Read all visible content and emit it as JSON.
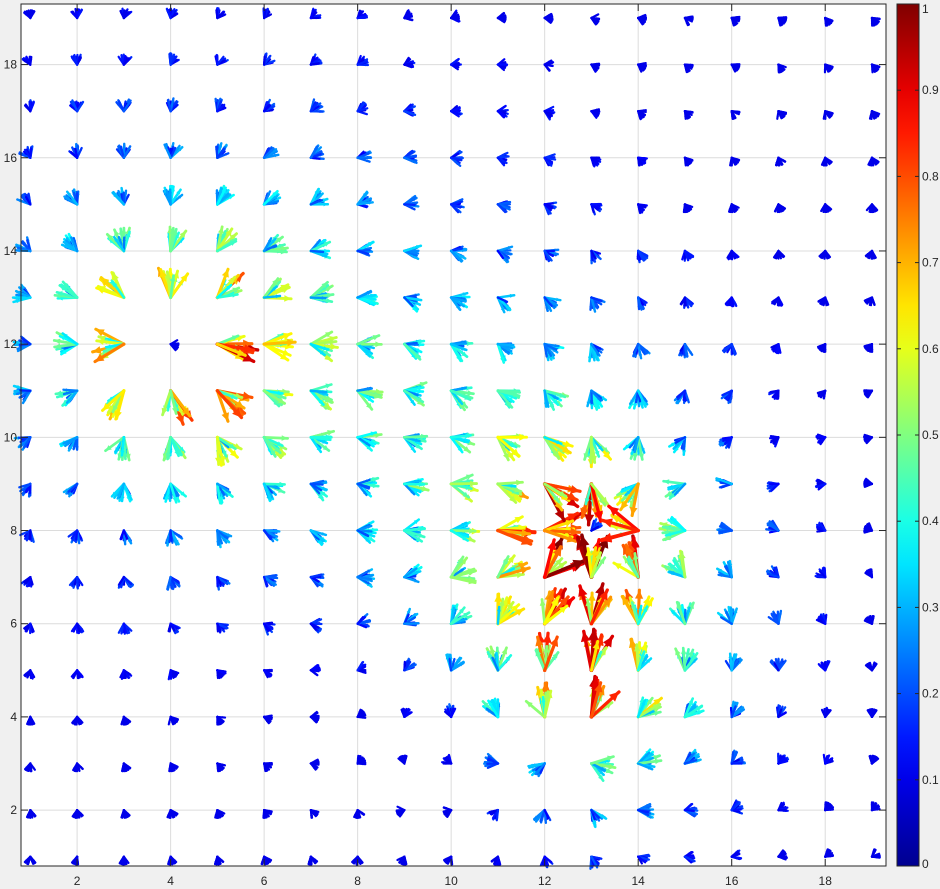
{
  "chart_data": {
    "type": "quiver",
    "title": "",
    "xlabel": "",
    "ylabel": "",
    "xlim": [
      0.8,
      19.3
    ],
    "ylim": [
      0.8,
      19.3
    ],
    "x_ticks": [
      2,
      4,
      6,
      8,
      10,
      12,
      14,
      16,
      18
    ],
    "y_ticks": [
      2,
      4,
      6,
      8,
      10,
      12,
      14,
      16,
      18
    ],
    "grid": true,
    "grid_points": {
      "x_start": 1,
      "x_end": 19,
      "y_start": 1,
      "y_end": 19,
      "step": 1
    },
    "arrows_per_point": 12,
    "colormap": "jet",
    "colorbar": {
      "range": [
        0,
        1
      ],
      "tick_labels": [
        "0",
        "0.1",
        "0.2",
        "0.3",
        "0.4",
        "0.5",
        "0.6",
        "0.7",
        "0.8",
        "0.9",
        "1"
      ],
      "colors": [
        "#00008f",
        "#0000ff",
        "#0080ff",
        "#00ffff",
        "#80ff80",
        "#ffff00",
        "#ff8000",
        "#ff0000",
        "#800000"
      ]
    },
    "field_features": [
      {
        "name": "sink",
        "x": 13,
        "y": 8,
        "strength": 1.0
      },
      {
        "name": "upper-left-source",
        "x": 4,
        "y": 12,
        "strength": 0.8
      },
      {
        "name": "lower-source",
        "x": 12.5,
        "y": 3.5,
        "strength": 0.55
      }
    ]
  }
}
